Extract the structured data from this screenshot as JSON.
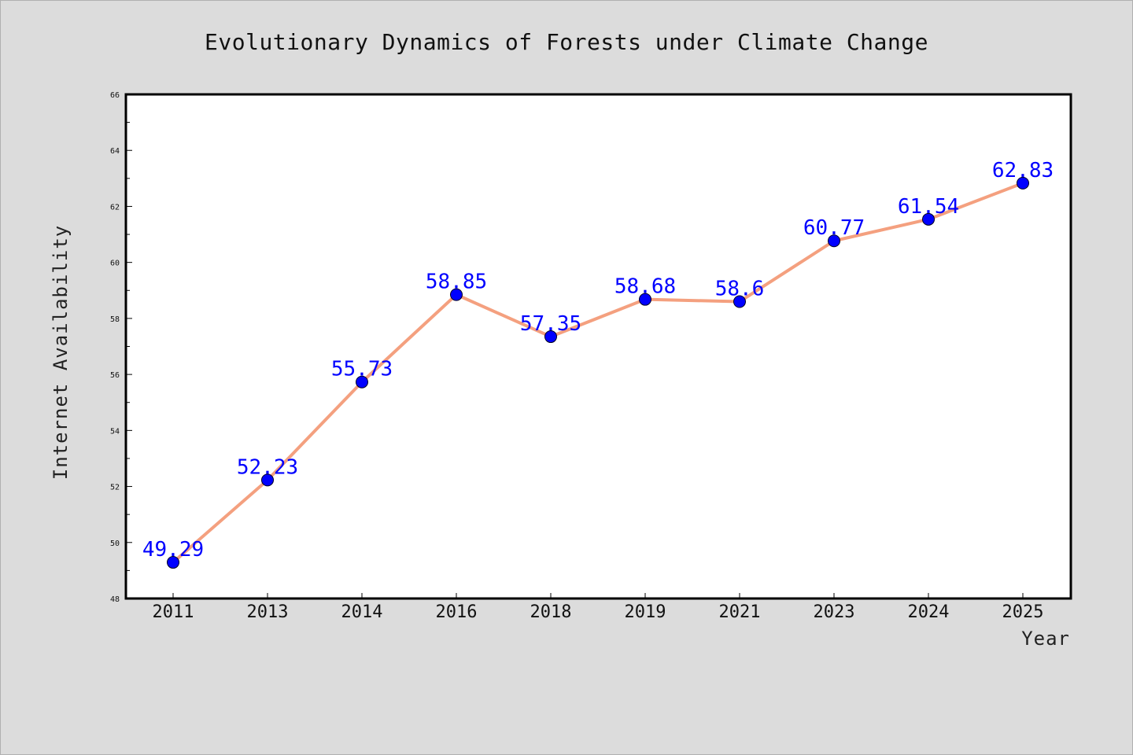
{
  "chart_data": {
    "type": "line",
    "title": "Evolutionary Dynamics of Forests under Climate Change",
    "xlabel": "Year",
    "ylabel": "Internet Availability",
    "categories": [
      "2011",
      "2013",
      "2014",
      "2016",
      "2018",
      "2019",
      "2021",
      "2023",
      "2024",
      "2025"
    ],
    "values": [
      49.29,
      52.23,
      55.73,
      58.85,
      57.35,
      58.68,
      58.6,
      60.77,
      61.54,
      62.83
    ],
    "data_labels": [
      "49.29",
      "52.23",
      "55.73",
      "58.85",
      "57.35",
      "58.68",
      "58.6",
      "60.77",
      "61.54",
      "62.83"
    ],
    "ylim": [
      48,
      66
    ],
    "yticks": [
      "48",
      "50",
      "52",
      "54",
      "56",
      "58",
      "60",
      "62",
      "64",
      "66"
    ],
    "grid": false,
    "legend": "none",
    "colors": {
      "line": "#f4a07f",
      "marker": "#0000ff",
      "data_label": "#0000ff",
      "plot_background": "#ffffff",
      "figure_background": "#dcdcdc"
    }
  }
}
